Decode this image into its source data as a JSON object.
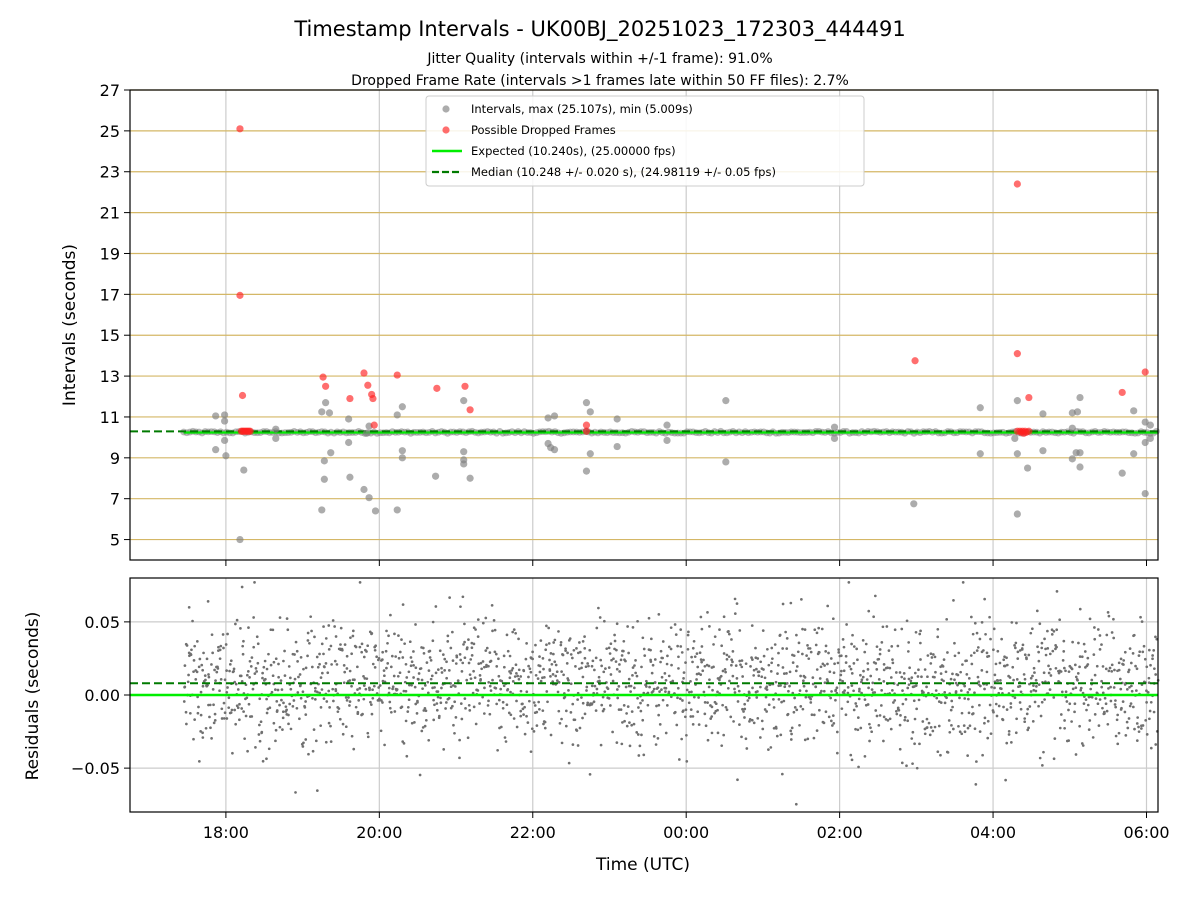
{
  "chart_data": {
    "type": "scatter",
    "title": "Timestamp Intervals - UK00BJ_20251023_172303_444491",
    "subtitles": [
      "Jitter Quality (intervals within +/-1 frame): 91.0%",
      "Dropped Frame Rate (intervals >1 frames late within 50 FF files): 2.7%"
    ],
    "xlabel": "Time (UTC)",
    "x_ticks": [
      "18:00",
      "20:00",
      "22:00",
      "00:00",
      "02:00",
      "04:00",
      "06:00"
    ],
    "top_panel": {
      "ylabel": "Intervals (seconds)",
      "ylim": [
        4.0,
        27.0
      ],
      "y_ticks": [
        "5",
        "7",
        "9",
        "11",
        "13",
        "15",
        "17",
        "19",
        "21",
        "23",
        "25",
        "27"
      ],
      "grid": true,
      "legend_position": "upper center",
      "legend": [
        "Intervals, max (25.107s), min (5.009s)",
        "Possible Dropped Frames",
        "Expected (10.240s), (25.00000 fps)",
        "Median (10.248 +/- 0.020 s), (24.98119 +/- 0.05 fps)"
      ],
      "expected": 10.24,
      "median": 10.248,
      "baseline_start": "17:27",
      "intervals_outliers": [
        {
          "x": "17:52",
          "y": 11.05
        },
        {
          "x": "17:52",
          "y": 9.4
        },
        {
          "x": "17:59",
          "y": 11.1
        },
        {
          "x": "17:59",
          "y": 10.8
        },
        {
          "x": "17:59",
          "y": 9.85
        },
        {
          "x": "18:00",
          "y": 9.1
        },
        {
          "x": "18:11",
          "y": 5.0
        },
        {
          "x": "18:14",
          "y": 8.4
        },
        {
          "x": "18:39",
          "y": 10.4
        },
        {
          "x": "18:39",
          "y": 9.95
        },
        {
          "x": "19:15",
          "y": 11.25
        },
        {
          "x": "19:15",
          "y": 6.45
        },
        {
          "x": "19:17",
          "y": 8.85
        },
        {
          "x": "19:17",
          "y": 7.95
        },
        {
          "x": "19:18",
          "y": 11.7
        },
        {
          "x": "19:21",
          "y": 11.2
        },
        {
          "x": "19:22",
          "y": 9.25
        },
        {
          "x": "19:36",
          "y": 10.9
        },
        {
          "x": "19:36",
          "y": 9.75
        },
        {
          "x": "19:37",
          "y": 8.05
        },
        {
          "x": "19:48",
          "y": 7.45
        },
        {
          "x": "19:50",
          "y": 10.2
        },
        {
          "x": "19:52",
          "y": 10.55
        },
        {
          "x": "19:52",
          "y": 7.05
        },
        {
          "x": "19:57",
          "y": 6.4
        },
        {
          "x": "20:14",
          "y": 11.1
        },
        {
          "x": "20:14",
          "y": 6.45
        },
        {
          "x": "20:18",
          "y": 11.5
        },
        {
          "x": "20:18",
          "y": 9.35
        },
        {
          "x": "20:18",
          "y": 9.0
        },
        {
          "x": "20:44",
          "y": 8.1
        },
        {
          "x": "21:06",
          "y": 11.8
        },
        {
          "x": "21:06",
          "y": 9.3
        },
        {
          "x": "21:06",
          "y": 8.9
        },
        {
          "x": "21:06",
          "y": 8.7
        },
        {
          "x": "21:11",
          "y": 8.0
        },
        {
          "x": "22:12",
          "y": 10.95
        },
        {
          "x": "22:12",
          "y": 9.7
        },
        {
          "x": "22:14",
          "y": 9.5
        },
        {
          "x": "22:17",
          "y": 11.05
        },
        {
          "x": "22:17",
          "y": 9.4
        },
        {
          "x": "22:42",
          "y": 11.7
        },
        {
          "x": "22:42",
          "y": 10.3
        },
        {
          "x": "22:42",
          "y": 8.35
        },
        {
          "x": "22:45",
          "y": 11.25
        },
        {
          "x": "22:45",
          "y": 9.2
        },
        {
          "x": "23:06",
          "y": 10.9
        },
        {
          "x": "23:06",
          "y": 9.55
        },
        {
          "x": "23:45",
          "y": 10.6
        },
        {
          "x": "23:45",
          "y": 9.85
        },
        {
          "x": "00:31",
          "y": 11.8
        },
        {
          "x": "00:31",
          "y": 8.8
        },
        {
          "x": "01:56",
          "y": 10.5
        },
        {
          "x": "01:56",
          "y": 9.95
        },
        {
          "x": "02:58",
          "y": 6.75
        },
        {
          "x": "03:50",
          "y": 11.45
        },
        {
          "x": "03:50",
          "y": 9.2
        },
        {
          "x": "04:19",
          "y": 11.8
        },
        {
          "x": "04:19",
          "y": 9.2
        },
        {
          "x": "04:19",
          "y": 6.25
        },
        {
          "x": "04:17",
          "y": 9.95
        },
        {
          "x": "04:27",
          "y": 8.5
        },
        {
          "x": "04:39",
          "y": 11.15
        },
        {
          "x": "04:39",
          "y": 9.35
        },
        {
          "x": "05:02",
          "y": 11.2
        },
        {
          "x": "05:02",
          "y": 10.45
        },
        {
          "x": "05:02",
          "y": 8.95
        },
        {
          "x": "05:05",
          "y": 9.25
        },
        {
          "x": "05:06",
          "y": 11.25
        },
        {
          "x": "05:08",
          "y": 11.95
        },
        {
          "x": "05:08",
          "y": 9.25
        },
        {
          "x": "05:08",
          "y": 8.55
        },
        {
          "x": "05:41",
          "y": 8.25
        },
        {
          "x": "05:50",
          "y": 11.3
        },
        {
          "x": "05:50",
          "y": 9.2
        },
        {
          "x": "05:59",
          "y": 10.75
        },
        {
          "x": "05:59",
          "y": 9.75
        },
        {
          "x": "05:59",
          "y": 7.25
        },
        {
          "x": "06:03",
          "y": 10.6
        },
        {
          "x": "06:03",
          "y": 9.95
        }
      ],
      "dropped_frames": [
        {
          "x": "18:11",
          "y": 25.1
        },
        {
          "x": "18:11",
          "y": 16.95
        },
        {
          "x": "18:13",
          "y": 12.05
        },
        {
          "x": "18:12",
          "y": 10.3
        },
        {
          "x": "18:13",
          "y": 10.3
        },
        {
          "x": "18:14",
          "y": 10.3
        },
        {
          "x": "18:15",
          "y": 10.3
        },
        {
          "x": "18:16",
          "y": 10.3
        },
        {
          "x": "18:17",
          "y": 10.3
        },
        {
          "x": "18:18",
          "y": 10.3
        },
        {
          "x": "18:19",
          "y": 10.3
        },
        {
          "x": "19:16",
          "y": 12.95
        },
        {
          "x": "19:18",
          "y": 12.5
        },
        {
          "x": "19:37",
          "y": 11.9
        },
        {
          "x": "19:48",
          "y": 13.15
        },
        {
          "x": "19:51",
          "y": 12.55
        },
        {
          "x": "19:54",
          "y": 12.1
        },
        {
          "x": "19:55",
          "y": 11.9
        },
        {
          "x": "19:56",
          "y": 10.6
        },
        {
          "x": "20:14",
          "y": 13.05
        },
        {
          "x": "20:45",
          "y": 12.4
        },
        {
          "x": "21:07",
          "y": 12.5
        },
        {
          "x": "21:11",
          "y": 11.35
        },
        {
          "x": "22:42",
          "y": 10.6
        },
        {
          "x": "22:42",
          "y": 10.3
        },
        {
          "x": "02:59",
          "y": 13.75
        },
        {
          "x": "04:19",
          "y": 22.4
        },
        {
          "x": "04:19",
          "y": 14.1
        },
        {
          "x": "04:19",
          "y": 10.3
        },
        {
          "x": "04:21",
          "y": 10.3
        },
        {
          "x": "04:22",
          "y": 10.25
        },
        {
          "x": "04:23",
          "y": 10.3
        },
        {
          "x": "04:24",
          "y": 10.2
        },
        {
          "x": "04:25",
          "y": 10.3
        },
        {
          "x": "04:26",
          "y": 10.25
        },
        {
          "x": "04:28",
          "y": 10.3
        },
        {
          "x": "04:28",
          "y": 11.95
        },
        {
          "x": "05:41",
          "y": 12.2
        },
        {
          "x": "05:59",
          "y": 13.2
        }
      ]
    },
    "bottom_panel": {
      "ylabel": "Residuals (seconds)",
      "ylim": [
        -0.08,
        0.08
      ],
      "y_ticks": [
        "−0.05",
        "0.00",
        "0.05"
      ],
      "grid": true,
      "expected_residual": 0.0,
      "median_residual": 0.008,
      "residual_spread_sd": 0.022
    },
    "x_range": [
      "16:45",
      "06:09"
    ],
    "colors": {
      "intervals": "#808080",
      "dropped": "#ff2020",
      "expected": "#00ee00",
      "median": "#007a00",
      "top_grid_h": "#d4b766",
      "grid_v": "#cccccc",
      "residuals": "#707070"
    }
  }
}
